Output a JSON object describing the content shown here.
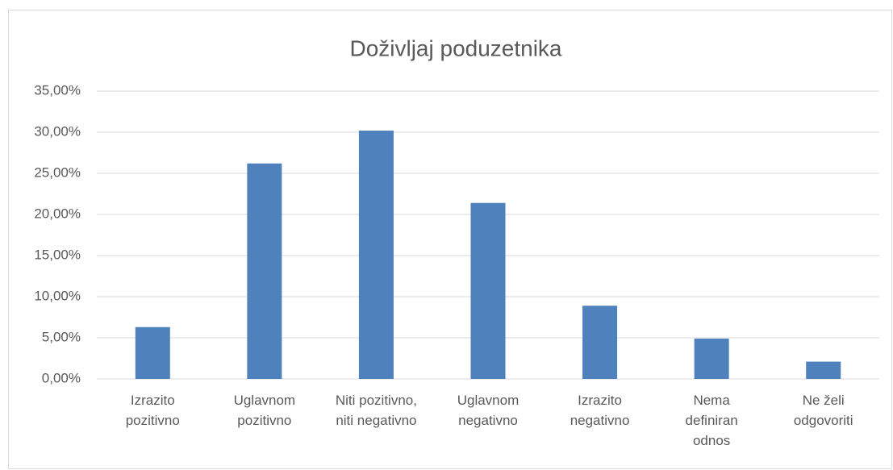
{
  "chart_data": {
    "type": "bar",
    "title": "Doživljaj poduzetnika",
    "categories": [
      "Izrazito\npozitivno",
      "Uglavnom\npozitivno",
      "Niti pozitivno,\nniti negativno",
      "Uglavnom\nnegativno",
      "Izrazito\nnegativno",
      "Nema\ndefiniran\nodnos",
      "Ne želi\nodgovoriti"
    ],
    "values": [
      6.3,
      26.2,
      30.2,
      21.4,
      8.9,
      4.9,
      2.1
    ],
    "color": "#4f81bd",
    "ylim": [
      0,
      35
    ],
    "yticks": [
      {
        "value": 0,
        "label": "0,00%"
      },
      {
        "value": 5,
        "label": "5,00%"
      },
      {
        "value": 10,
        "label": "10,00%"
      },
      {
        "value": 15,
        "label": "15,00%"
      },
      {
        "value": 20,
        "label": "20,00%"
      },
      {
        "value": 25,
        "label": "25,00%"
      },
      {
        "value": 30,
        "label": "30,00%"
      },
      {
        "value": 35,
        "label": "35,00%"
      }
    ],
    "grid": true
  }
}
